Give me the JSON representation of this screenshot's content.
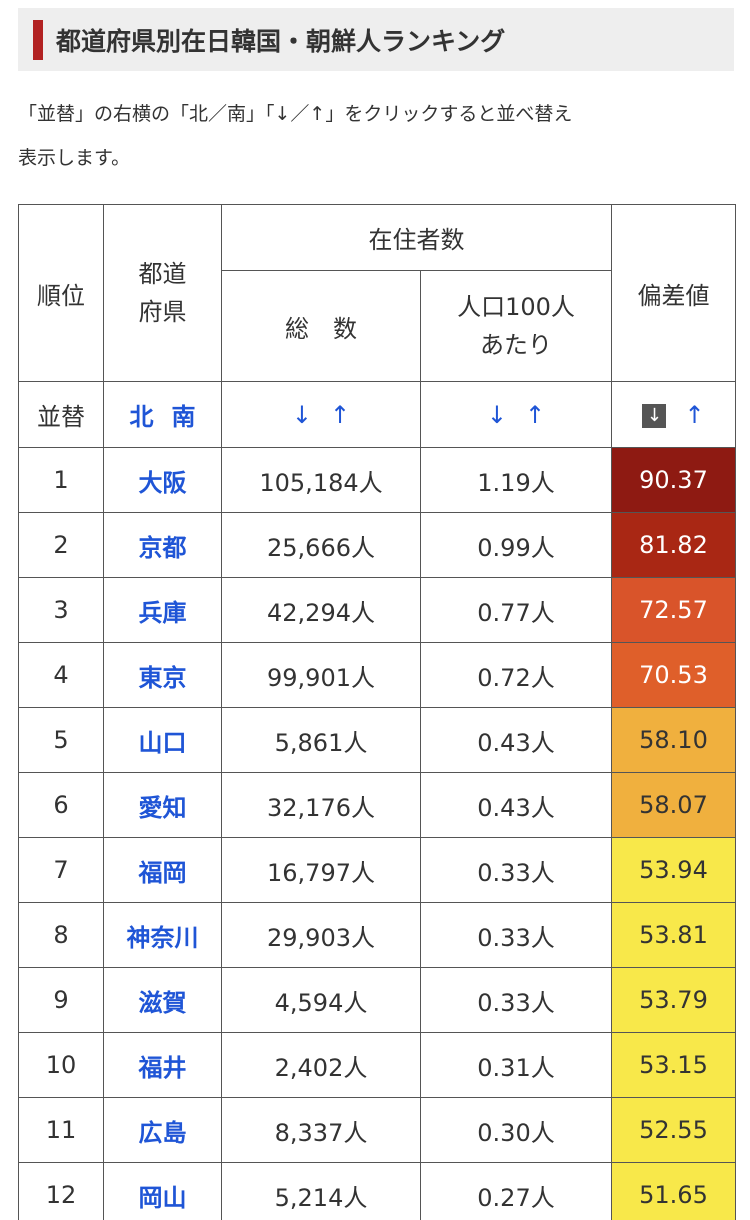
{
  "section": {
    "title": "都道府県別在日韓国・朝鮮人ランキング",
    "accent_color": "#b22222"
  },
  "intro_line1": "「並替」の右横の「北／南」「↓／↑」をクリックすると並べ替え",
  "intro_line2": "表示します。",
  "table": {
    "headers": {
      "rank": "順位",
      "pref_line1": "都道",
      "pref_line2": "府県",
      "residents": "在住者数",
      "total": "総　数",
      "per100_line1": "人口100人",
      "per100_line2": "あたり",
      "deviation": "偏差値"
    },
    "sort_row": {
      "label": "並替",
      "north": "北",
      "south": "南",
      "down": "↓",
      "up": "↑"
    },
    "rows": [
      {
        "rank": "1",
        "pref": "大阪",
        "total": "105,184人",
        "per100": "1.19人",
        "score": "90.37",
        "bg": "#8e1a12",
        "fg": "#ffffff"
      },
      {
        "rank": "2",
        "pref": "京都",
        "total": "25,666人",
        "per100": "0.99人",
        "score": "81.82",
        "bg": "#a92714",
        "fg": "#ffffff"
      },
      {
        "rank": "3",
        "pref": "兵庫",
        "total": "42,294人",
        "per100": "0.77人",
        "score": "72.57",
        "bg": "#d9542a",
        "fg": "#ffffff"
      },
      {
        "rank": "4",
        "pref": "東京",
        "total": "99,901人",
        "per100": "0.72人",
        "score": "70.53",
        "bg": "#df5f2a",
        "fg": "#ffffff"
      },
      {
        "rank": "5",
        "pref": "山口",
        "total": "5,861人",
        "per100": "0.43人",
        "score": "58.10",
        "bg": "#f0b03e",
        "fg": "#333333"
      },
      {
        "rank": "6",
        "pref": "愛知",
        "total": "32,176人",
        "per100": "0.43人",
        "score": "58.07",
        "bg": "#f0b03e",
        "fg": "#333333"
      },
      {
        "rank": "7",
        "pref": "福岡",
        "total": "16,797人",
        "per100": "0.33人",
        "score": "53.94",
        "bg": "#f8e84a",
        "fg": "#333333"
      },
      {
        "rank": "8",
        "pref": "神奈川",
        "total": "29,903人",
        "per100": "0.33人",
        "score": "53.81",
        "bg": "#f8e84a",
        "fg": "#333333"
      },
      {
        "rank": "9",
        "pref": "滋賀",
        "total": "4,594人",
        "per100": "0.33人",
        "score": "53.79",
        "bg": "#f8e84a",
        "fg": "#333333"
      },
      {
        "rank": "10",
        "pref": "福井",
        "total": "2,402人",
        "per100": "0.31人",
        "score": "53.15",
        "bg": "#f8e84a",
        "fg": "#333333"
      },
      {
        "rank": "11",
        "pref": "広島",
        "total": "8,337人",
        "per100": "0.30人",
        "score": "52.55",
        "bg": "#f8e84a",
        "fg": "#333333"
      },
      {
        "rank": "12",
        "pref": "岡山",
        "total": "5,214人",
        "per100": "0.27人",
        "score": "51.65",
        "bg": "#f8e84a",
        "fg": "#333333"
      }
    ]
  }
}
